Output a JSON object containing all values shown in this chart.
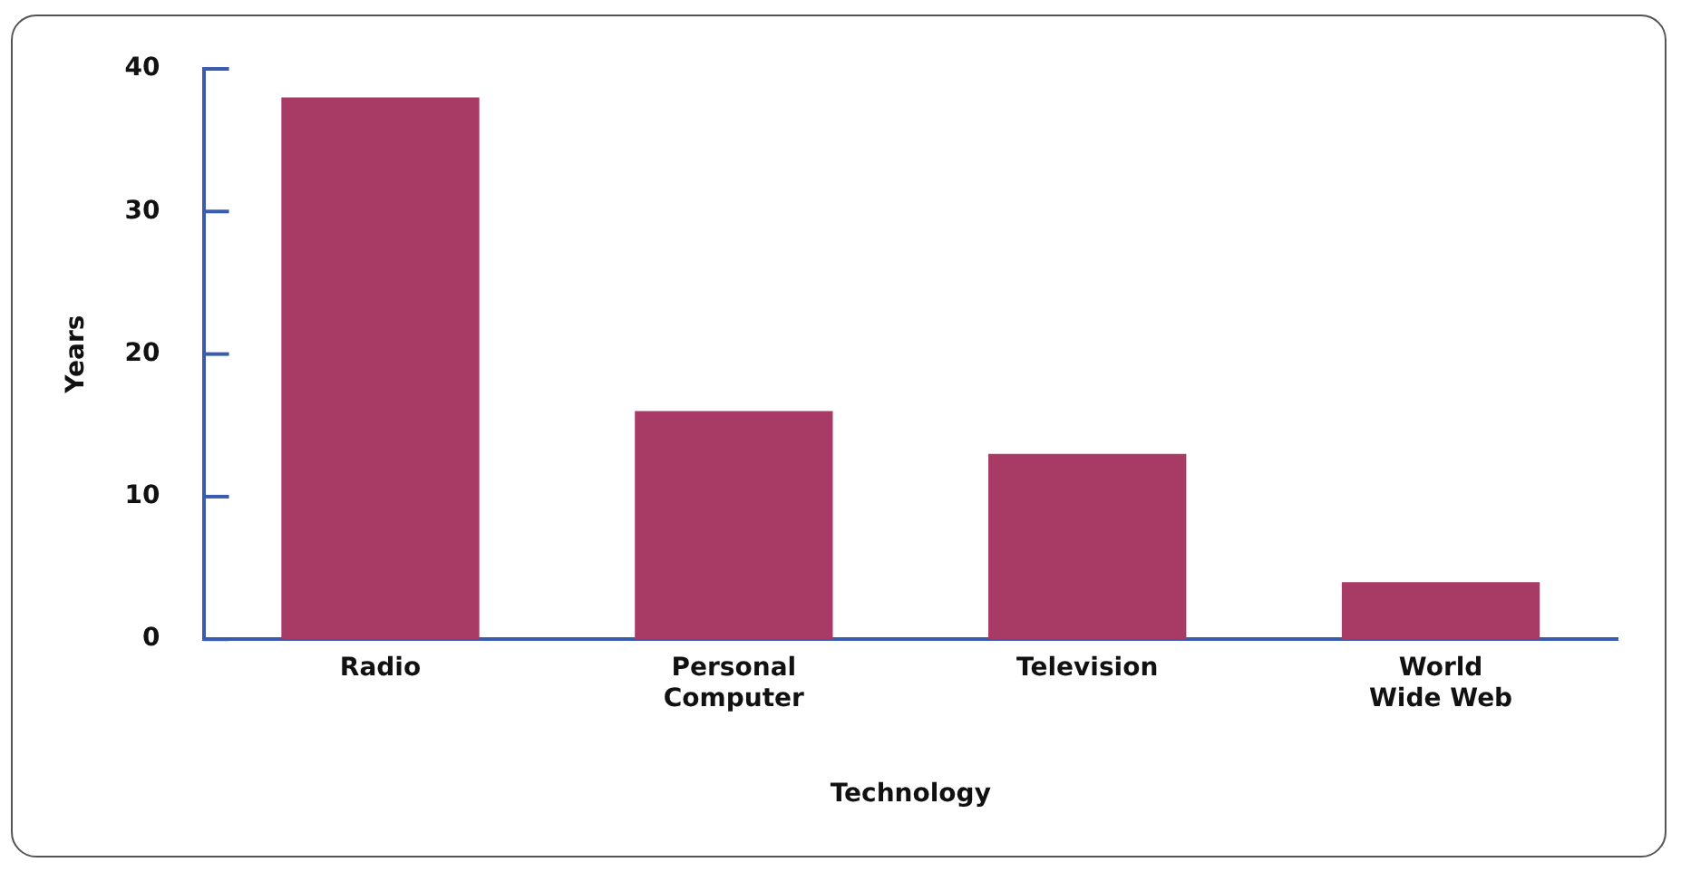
{
  "chart_data": {
    "type": "bar",
    "xlabel": "Technology",
    "ylabel": "Years",
    "categories": [
      "Radio",
      "Personal\nComputer",
      "Television",
      "World\nWide Web"
    ],
    "values": [
      38,
      16,
      13,
      4
    ],
    "color": "#a83a66",
    "ylim": [
      0,
      40
    ],
    "yticks": [
      0,
      10,
      20,
      30,
      40
    ],
    "grid": false
  }
}
